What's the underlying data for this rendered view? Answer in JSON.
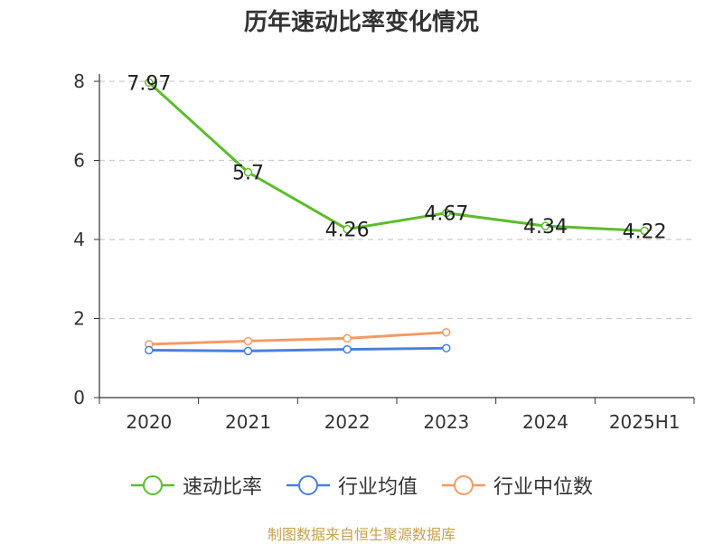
{
  "chart_data": {
    "type": "line",
    "title": "历年速动比率变化情况",
    "categories": [
      "2020",
      "2021",
      "2022",
      "2023",
      "2024",
      "2025H1"
    ],
    "ylim": [
      0,
      8
    ],
    "yticks": [
      "0",
      "2",
      "4",
      "6",
      "8"
    ],
    "grid": true,
    "legend_position": "bottom",
    "series": [
      {
        "name": "速动比率",
        "color": "#5bbd2b",
        "values": [
          7.97,
          5.7,
          4.26,
          4.67,
          4.34,
          4.22
        ],
        "labels": [
          "7.97",
          "5.7",
          "4.26",
          "4.67",
          "4.34",
          "4.22"
        ]
      },
      {
        "name": "行业均值",
        "color": "#4a7fe0",
        "values": [
          1.2,
          1.18,
          1.22,
          1.25,
          null,
          null
        ]
      },
      {
        "name": "行业中位数",
        "color": "#f59a63",
        "values": [
          1.35,
          1.43,
          1.5,
          1.65,
          null,
          null
        ]
      }
    ]
  },
  "source": "制图数据来自恒生聚源数据库"
}
